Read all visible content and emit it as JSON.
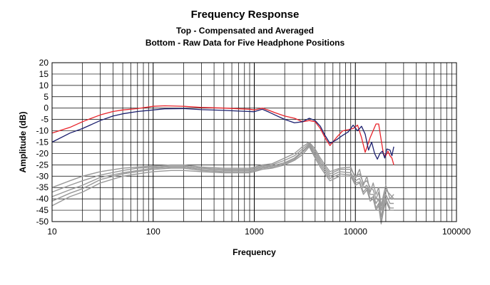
{
  "chart_data": {
    "type": "line",
    "title": "Frequency Response",
    "subtitle": [
      "Top -  Compensated and Averaged",
      "Bottom - Raw Data for Five Headphone Positions"
    ],
    "xlabel": "Frequency",
    "ylabel": "Amplitude (dB)",
    "xscale": "log",
    "xlim": [
      10,
      100000
    ],
    "ylim": [
      -50,
      20
    ],
    "xticks": [
      10,
      100,
      1000,
      10000,
      100000
    ],
    "xtick_labels": [
      "10",
      "100",
      "1000",
      "10000",
      "100000"
    ],
    "yticks": [
      20,
      15,
      10,
      5,
      0,
      -5,
      -10,
      -15,
      -20,
      -25,
      -30,
      -35,
      -40,
      -45,
      -50
    ],
    "ytick_labels": [
      "20",
      "15",
      "10",
      "5",
      "0",
      "-5",
      "-10",
      "-15",
      "-20",
      "-25",
      "-30",
      "-35",
      "-40",
      "-45",
      "-50"
    ],
    "grid": true,
    "legend": "none",
    "series": [
      {
        "color": "#e8232a",
        "points": [
          [
            10,
            -11
          ],
          [
            15,
            -8.5
          ],
          [
            20,
            -6
          ],
          [
            30,
            -3
          ],
          [
            40,
            -1.5
          ],
          [
            50,
            -0.8
          ],
          [
            70,
            -0.2
          ],
          [
            100,
            0.8
          ],
          [
            130,
            1
          ],
          [
            200,
            0.8
          ],
          [
            300,
            0.3
          ],
          [
            500,
            0
          ],
          [
            700,
            -0.3
          ],
          [
            900,
            -0.5
          ],
          [
            1000,
            -0.8
          ],
          [
            1200,
            0
          ],
          [
            1400,
            -1
          ],
          [
            1600,
            -2
          ],
          [
            2000,
            -3.5
          ],
          [
            2500,
            -4.5
          ],
          [
            3000,
            -6
          ],
          [
            3500,
            -5.5
          ],
          [
            4000,
            -6
          ],
          [
            4500,
            -9
          ],
          [
            5000,
            -13
          ],
          [
            5600,
            -16.5
          ],
          [
            6500,
            -13
          ],
          [
            7500,
            -10
          ],
          [
            8500,
            -9.5
          ],
          [
            9500,
            -9
          ],
          [
            10500,
            -7.5
          ],
          [
            11500,
            -13
          ],
          [
            12500,
            -19.5
          ],
          [
            14000,
            -13
          ],
          [
            16000,
            -7
          ],
          [
            17000,
            -7
          ],
          [
            18000,
            -14
          ],
          [
            19000,
            -20.5
          ],
          [
            20000,
            -21
          ],
          [
            21000,
            -19
          ],
          [
            22000,
            -21
          ],
          [
            23000,
            -22
          ],
          [
            24000,
            -25
          ]
        ]
      },
      {
        "color": "#1b1f6e",
        "points": [
          [
            10,
            -15
          ],
          [
            15,
            -11
          ],
          [
            20,
            -9
          ],
          [
            30,
            -5.5
          ],
          [
            40,
            -3.5
          ],
          [
            50,
            -2.5
          ],
          [
            70,
            -1.5
          ],
          [
            100,
            -0.8
          ],
          [
            130,
            -0.3
          ],
          [
            200,
            -0.2
          ],
          [
            300,
            -0.7
          ],
          [
            500,
            -1
          ],
          [
            700,
            -1.3
          ],
          [
            900,
            -1.5
          ],
          [
            1000,
            -1.6
          ],
          [
            1200,
            -0.5
          ],
          [
            1400,
            -1.8
          ],
          [
            1600,
            -3
          ],
          [
            2000,
            -5
          ],
          [
            2500,
            -6.5
          ],
          [
            3000,
            -6
          ],
          [
            3500,
            -4.5
          ],
          [
            4000,
            -5.5
          ],
          [
            4500,
            -8
          ],
          [
            5000,
            -12
          ],
          [
            5600,
            -15.5
          ],
          [
            6500,
            -14
          ],
          [
            7500,
            -12
          ],
          [
            8500,
            -10.5
          ],
          [
            9500,
            -7.5
          ],
          [
            10500,
            -10
          ],
          [
            11500,
            -8
          ],
          [
            12500,
            -11.5
          ],
          [
            13500,
            -18.5
          ],
          [
            14500,
            -15
          ],
          [
            15500,
            -20
          ],
          [
            16500,
            -22.5
          ],
          [
            17500,
            -20
          ],
          [
            18500,
            -19
          ],
          [
            19500,
            -22
          ],
          [
            20500,
            -18
          ],
          [
            22000,
            -18.5
          ],
          [
            23000,
            -21
          ],
          [
            24000,
            -17
          ]
        ]
      },
      {
        "color": "#999999",
        "points": [
          [
            10,
            -35
          ],
          [
            15,
            -32
          ],
          [
            20,
            -30
          ],
          [
            30,
            -28
          ],
          [
            50,
            -26.5
          ],
          [
            70,
            -26
          ],
          [
            100,
            -25.5
          ],
          [
            150,
            -25
          ],
          [
            200,
            -25
          ],
          [
            300,
            -26
          ],
          [
            500,
            -26.5
          ],
          [
            700,
            -26.5
          ],
          [
            900,
            -26.5
          ],
          [
            1000,
            -26
          ],
          [
            1200,
            -25
          ],
          [
            1500,
            -24.5
          ],
          [
            2000,
            -22
          ],
          [
            2500,
            -20
          ],
          [
            3000,
            -17
          ],
          [
            3500,
            -15
          ],
          [
            4000,
            -18
          ],
          [
            4500,
            -22
          ],
          [
            5000,
            -25
          ],
          [
            5600,
            -28
          ],
          [
            7000,
            -26.5
          ],
          [
            9000,
            -26
          ],
          [
            10000,
            -31
          ],
          [
            11000,
            -27
          ],
          [
            12000,
            -34
          ],
          [
            13000,
            -30
          ],
          [
            14000,
            -37
          ],
          [
            15000,
            -33
          ],
          [
            16000,
            -38
          ],
          [
            17000,
            -35
          ],
          [
            18000,
            -43
          ],
          [
            19000,
            -38
          ],
          [
            20000,
            -34
          ],
          [
            22000,
            -40
          ],
          [
            24000,
            -38
          ]
        ]
      },
      {
        "color": "#999999",
        "points": [
          [
            10,
            -37
          ],
          [
            15,
            -34
          ],
          [
            20,
            -32
          ],
          [
            30,
            -29.5
          ],
          [
            50,
            -27.5
          ],
          [
            70,
            -26.5
          ],
          [
            100,
            -26
          ],
          [
            150,
            -25.5
          ],
          [
            200,
            -25.5
          ],
          [
            300,
            -26.5
          ],
          [
            500,
            -27
          ],
          [
            700,
            -27
          ],
          [
            900,
            -27
          ],
          [
            1000,
            -26.5
          ],
          [
            1200,
            -25.5
          ],
          [
            1500,
            -25
          ],
          [
            2000,
            -23
          ],
          [
            2500,
            -21
          ],
          [
            3000,
            -18
          ],
          [
            3500,
            -15.5
          ],
          [
            4000,
            -19
          ],
          [
            4500,
            -23
          ],
          [
            5000,
            -26
          ],
          [
            5600,
            -29
          ],
          [
            7000,
            -27
          ],
          [
            9000,
            -27
          ],
          [
            10000,
            -30
          ],
          [
            11000,
            -29
          ],
          [
            12000,
            -33
          ],
          [
            13000,
            -32
          ],
          [
            14000,
            -35
          ],
          [
            15000,
            -36
          ],
          [
            16000,
            -40
          ],
          [
            17000,
            -37
          ],
          [
            18000,
            -45
          ],
          [
            19000,
            -40
          ],
          [
            20000,
            -36
          ],
          [
            22000,
            -38
          ],
          [
            24000,
            -40
          ]
        ]
      },
      {
        "color": "#999999",
        "points": [
          [
            10,
            -39
          ],
          [
            15,
            -36
          ],
          [
            20,
            -34
          ],
          [
            30,
            -30.5
          ],
          [
            50,
            -28.5
          ],
          [
            70,
            -27.5
          ],
          [
            100,
            -26.5
          ],
          [
            150,
            -26
          ],
          [
            200,
            -26
          ],
          [
            300,
            -27
          ],
          [
            500,
            -27.5
          ],
          [
            700,
            -27.5
          ],
          [
            900,
            -27.5
          ],
          [
            1000,
            -27
          ],
          [
            1200,
            -26
          ],
          [
            1500,
            -25.5
          ],
          [
            2000,
            -24
          ],
          [
            2500,
            -22
          ],
          [
            3000,
            -19
          ],
          [
            3500,
            -16
          ],
          [
            4000,
            -20
          ],
          [
            4500,
            -24
          ],
          [
            5000,
            -27
          ],
          [
            5600,
            -30
          ],
          [
            7000,
            -28
          ],
          [
            9000,
            -28.5
          ],
          [
            10000,
            -32
          ],
          [
            11000,
            -31
          ],
          [
            12000,
            -35
          ],
          [
            13000,
            -34
          ],
          [
            14000,
            -38
          ],
          [
            15000,
            -38
          ],
          [
            16000,
            -42
          ],
          [
            17000,
            -40
          ],
          [
            18000,
            -48
          ],
          [
            19000,
            -42
          ],
          [
            20000,
            -38
          ],
          [
            22000,
            -42
          ],
          [
            24000,
            -42
          ]
        ]
      },
      {
        "color": "#999999",
        "points": [
          [
            10,
            -41
          ],
          [
            15,
            -37.5
          ],
          [
            20,
            -35.5
          ],
          [
            30,
            -31.5
          ],
          [
            50,
            -29
          ],
          [
            70,
            -28
          ],
          [
            100,
            -27
          ],
          [
            150,
            -26.5
          ],
          [
            200,
            -26.5
          ],
          [
            300,
            -27.5
          ],
          [
            500,
            -28
          ],
          [
            700,
            -28
          ],
          [
            900,
            -28
          ],
          [
            1000,
            -27.5
          ],
          [
            1200,
            -26.5
          ],
          [
            1500,
            -26
          ],
          [
            2000,
            -24.5
          ],
          [
            2500,
            -22.5
          ],
          [
            3000,
            -19.5
          ],
          [
            3500,
            -16.5
          ],
          [
            4000,
            -21
          ],
          [
            4500,
            -25
          ],
          [
            5000,
            -28
          ],
          [
            5600,
            -31
          ],
          [
            7000,
            -29
          ],
          [
            9000,
            -29.5
          ],
          [
            10000,
            -33
          ],
          [
            11000,
            -32.5
          ],
          [
            12000,
            -37
          ],
          [
            13000,
            -35
          ],
          [
            14000,
            -40
          ],
          [
            15000,
            -39
          ],
          [
            16000,
            -44
          ],
          [
            17000,
            -42
          ],
          [
            18000,
            -50
          ],
          [
            19000,
            -44
          ],
          [
            20000,
            -40
          ],
          [
            22000,
            -44
          ],
          [
            24000,
            -44
          ]
        ]
      },
      {
        "color": "#999999",
        "points": [
          [
            10,
            -43
          ],
          [
            15,
            -39
          ],
          [
            20,
            -37
          ],
          [
            30,
            -33
          ],
          [
            50,
            -30
          ],
          [
            70,
            -29
          ],
          [
            100,
            -28
          ],
          [
            150,
            -27.5
          ],
          [
            200,
            -27.5
          ],
          [
            300,
            -28
          ],
          [
            500,
            -28.5
          ],
          [
            700,
            -28.5
          ],
          [
            900,
            -28.5
          ],
          [
            1000,
            -28
          ],
          [
            1200,
            -27
          ],
          [
            1500,
            -26.5
          ],
          [
            2000,
            -25
          ],
          [
            2500,
            -23
          ],
          [
            3000,
            -20.5
          ],
          [
            3500,
            -17
          ],
          [
            4000,
            -22
          ],
          [
            4500,
            -26
          ],
          [
            5000,
            -29
          ],
          [
            5600,
            -32
          ],
          [
            7000,
            -30
          ],
          [
            9000,
            -30
          ],
          [
            10000,
            -34
          ],
          [
            11000,
            -33
          ],
          [
            12000,
            -38
          ],
          [
            13000,
            -36
          ],
          [
            14000,
            -41
          ],
          [
            15000,
            -40
          ],
          [
            16000,
            -45
          ],
          [
            17000,
            -43
          ],
          [
            18000,
            -51
          ],
          [
            19000,
            -45
          ],
          [
            20000,
            -41
          ],
          [
            22000,
            -45
          ],
          [
            24000,
            -45
          ]
        ]
      }
    ]
  }
}
